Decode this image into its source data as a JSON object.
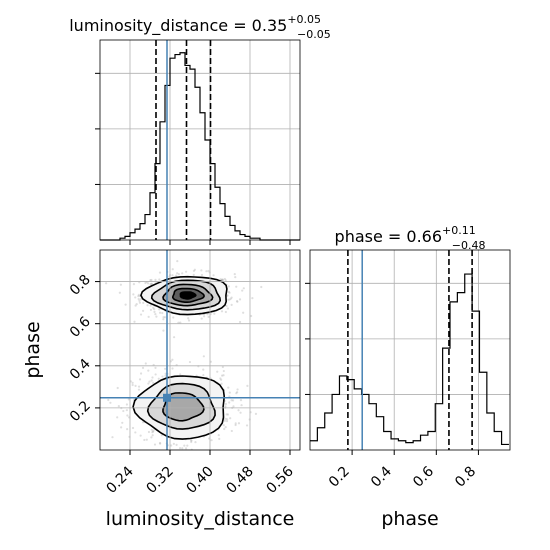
{
  "chart_data": [
    {
      "type": "histogram",
      "panel": "top-left",
      "title": "luminosity_distance = 0.35",
      "title_value": {
        "median": "0.35",
        "upper": "+0.05",
        "lower": "−0.05"
      },
      "x_param": "luminosity_distance",
      "xlim": [
        0.18,
        0.58
      ],
      "xticks": [
        0.24,
        0.32,
        0.4,
        0.48,
        0.56
      ],
      "bins": [
        0.18,
        0.19,
        0.2,
        0.21,
        0.22,
        0.23,
        0.24,
        0.25,
        0.26,
        0.27,
        0.28,
        0.29,
        0.3,
        0.31,
        0.32,
        0.33,
        0.34,
        0.35,
        0.36,
        0.37,
        0.38,
        0.39,
        0.4,
        0.41,
        0.42,
        0.43,
        0.44,
        0.45,
        0.46,
        0.47,
        0.48,
        0.49,
        0.5,
        0.51,
        0.52,
        0.53,
        0.54,
        0.55,
        0.56,
        0.57,
        0.58
      ],
      "counts": [
        0,
        0,
        0,
        0,
        1,
        2,
        4,
        6,
        9,
        14,
        26,
        42,
        65,
        85,
        100,
        102,
        103,
        96,
        94,
        84,
        70,
        55,
        42,
        29,
        20,
        13,
        8,
        5,
        3,
        2,
        1,
        1,
        0,
        0,
        0,
        0,
        0,
        0,
        0,
        0
      ],
      "ylim": [
        0,
        110
      ],
      "quantiles": [
        0.292,
        0.353,
        0.401
      ],
      "truth": 0.314
    },
    {
      "type": "histogram",
      "panel": "bottom-right",
      "title": "phase = 0.66",
      "title_value": {
        "median": "0.66",
        "upper": "+0.11",
        "lower": "−0.48"
      },
      "x_param": "phase",
      "xlabel": "phase",
      "xlim": [
        0.0,
        0.95
      ],
      "xticks": [
        0.2,
        0.4,
        0.6,
        0.8
      ],
      "bins": [
        0.0,
        0.035,
        0.07,
        0.105,
        0.14,
        0.175,
        0.21,
        0.245,
        0.28,
        0.315,
        0.35,
        0.385,
        0.42,
        0.455,
        0.49,
        0.525,
        0.56,
        0.595,
        0.63,
        0.665,
        0.7,
        0.735,
        0.77,
        0.805,
        0.84,
        0.875,
        0.91,
        0.945
      ],
      "counts": [
        5,
        12,
        20,
        30,
        40,
        38,
        33,
        30,
        25,
        18,
        10,
        6,
        5,
        4,
        5,
        8,
        10,
        25,
        55,
        80,
        85,
        95,
        75,
        42,
        20,
        10,
        3
      ],
      "ylim": [
        0,
        108
      ],
      "quantiles": [
        0.18,
        0.66,
        0.77
      ],
      "truth": 0.248
    },
    {
      "type": "scatter",
      "panel": "bottom-left",
      "x_param": "luminosity_distance",
      "y_param": "phase",
      "xlabel": "luminosity_distance",
      "ylabel": "phase",
      "xlim": [
        0.18,
        0.58
      ],
      "ylim": [
        0.0,
        0.95
      ],
      "xticks": [
        0.24,
        0.32,
        0.4,
        0.48,
        0.56
      ],
      "yticks": [
        0.2,
        0.4,
        0.6,
        0.8
      ],
      "modes": [
        {
          "center": [
            0.355,
            0.735
          ],
          "width": [
            0.085,
            0.09
          ],
          "contours_scale": [
            1.0,
            0.78,
            0.56,
            0.36,
            0.18
          ]
        },
        {
          "center": [
            0.345,
            0.205
          ],
          "width": [
            0.09,
            0.15
          ],
          "contours_scale": [
            1.0,
            0.72,
            0.44
          ]
        }
      ],
      "truth": [
        0.314,
        0.248
      ],
      "density_fill_colors": [
        "#f4f4f4",
        "#d8d8d8",
        "#a8a8a8",
        "#5e5e5e",
        "#000000"
      ],
      "truth_color": "#4682b4"
    }
  ]
}
